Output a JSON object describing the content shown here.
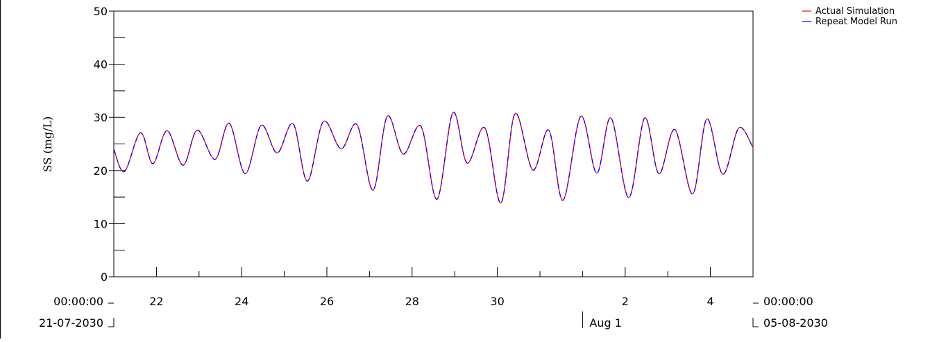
{
  "chart_data": {
    "type": "line",
    "title": "",
    "xlabel": "",
    "ylabel": "SS (mg/L)",
    "ylim": [
      0,
      50
    ],
    "xlim": [
      "2030-07-21 00:00",
      "2030-08-05 00:00"
    ],
    "y_ticks": [
      "0",
      "10",
      "20",
      "30",
      "40",
      "50"
    ],
    "x_ticks": [
      "22",
      "24",
      "26",
      "28",
      "30",
      "2",
      "4"
    ],
    "x_start_time": "00:00:00",
    "x_start_date": "21-07-2030",
    "x_end_time": "00:00:00",
    "x_end_date": "05-08-2030",
    "month_label": "Aug 1",
    "grid": false,
    "legend_position": "top-right",
    "series": [
      {
        "name": "Actual Simulation",
        "color": "#ff0000",
        "x": [
          "2030-07-21 00:00",
          "2030-07-21 06:00",
          "2030-07-21 15:00",
          "2030-07-21 22:00",
          "2030-07-22 06:00",
          "2030-07-22 15:00",
          "2030-07-22 23:00",
          "2030-07-23 09:00",
          "2030-07-23 17:00",
          "2030-07-24 02:00",
          "2030-07-24 11:00",
          "2030-07-24 20:00",
          "2030-07-25 05:00",
          "2030-07-25 13:00",
          "2030-07-25 22:00",
          "2030-07-26 08:00",
          "2030-07-26 17:00",
          "2030-07-27 02:00",
          "2030-07-27 10:00",
          "2030-07-27 19:00",
          "2030-07-28 05:00",
          "2030-07-28 14:00",
          "2030-07-28 23:00",
          "2030-07-29 07:00",
          "2030-07-29 17:00",
          "2030-07-30 02:00",
          "2030-07-30 10:00",
          "2030-07-30 20:00",
          "2030-07-31 05:00",
          "2030-07-31 13:00",
          "2030-07-31 23:00",
          "2030-08-01 08:00",
          "2030-08-01 16:00",
          "2030-08-02 02:00",
          "2030-08-02 11:00",
          "2030-08-02 19:00",
          "2030-08-03 04:00",
          "2030-08-03 14:00",
          "2030-08-03 22:00",
          "2030-08-04 07:00",
          "2030-08-04 16:00",
          "2030-08-05 00:00"
        ],
        "values": [
          24,
          19.8,
          27.1,
          21.3,
          27.5,
          21,
          27.6,
          22.1,
          28.9,
          19.4,
          28.5,
          23.3,
          28.8,
          18,
          29.2,
          24.1,
          28.6,
          16.3,
          30.2,
          23.1,
          28.3,
          14.6,
          30.9,
          21.4,
          28,
          13.9,
          30.7,
          20.1,
          27.6,
          14.4,
          30.2,
          19.5,
          29.9,
          14.9,
          29.9,
          19.4,
          27.7,
          15.6,
          29.7,
          19.3,
          28,
          24.3
        ]
      },
      {
        "name": "Repeat Model Run",
        "color": "#0000ff",
        "x": [
          "2030-07-21 00:00",
          "2030-07-21 06:00",
          "2030-07-21 15:00",
          "2030-07-21 22:00",
          "2030-07-22 06:00",
          "2030-07-22 15:00",
          "2030-07-22 23:00",
          "2030-07-23 09:00",
          "2030-07-23 17:00",
          "2030-07-24 02:00",
          "2030-07-24 11:00",
          "2030-07-24 20:00",
          "2030-07-25 05:00",
          "2030-07-25 13:00",
          "2030-07-25 22:00",
          "2030-07-26 08:00",
          "2030-07-26 17:00",
          "2030-07-27 02:00",
          "2030-07-27 10:00",
          "2030-07-27 19:00",
          "2030-07-28 05:00",
          "2030-07-28 14:00",
          "2030-07-28 23:00",
          "2030-07-29 07:00",
          "2030-07-29 17:00",
          "2030-07-30 02:00",
          "2030-07-30 10:00",
          "2030-07-30 20:00",
          "2030-07-31 05:00",
          "2030-07-31 13:00",
          "2030-07-31 23:00",
          "2030-08-01 08:00",
          "2030-08-01 16:00",
          "2030-08-02 02:00",
          "2030-08-02 11:00",
          "2030-08-02 19:00",
          "2030-08-03 04:00",
          "2030-08-03 14:00",
          "2030-08-03 22:00",
          "2030-08-04 07:00",
          "2030-08-04 16:00",
          "2030-08-05 00:00"
        ],
        "values": [
          24,
          19.8,
          27.1,
          21.3,
          27.5,
          21,
          27.6,
          22.1,
          28.9,
          19.4,
          28.5,
          23.3,
          28.8,
          18,
          29.2,
          24.1,
          28.6,
          16.3,
          30.2,
          23.1,
          28.3,
          14.6,
          30.9,
          21.4,
          28,
          13.9,
          30.7,
          20.1,
          27.6,
          14.4,
          30.2,
          19.5,
          29.9,
          14.9,
          29.9,
          19.4,
          27.7,
          15.6,
          29.7,
          19.3,
          28,
          24.3
        ]
      }
    ]
  }
}
